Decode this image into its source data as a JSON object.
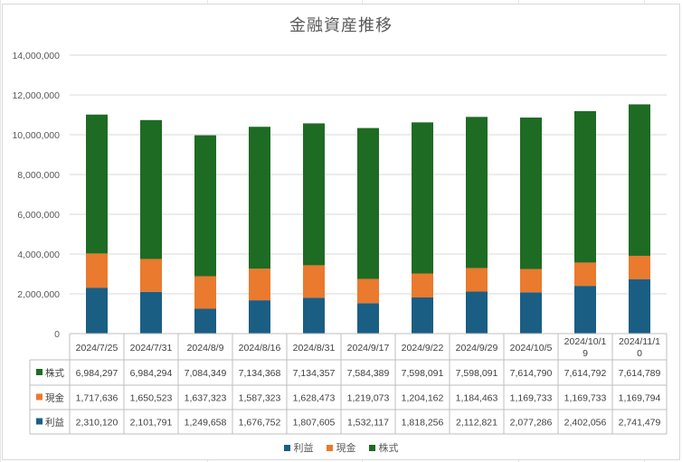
{
  "chart_data": {
    "type": "bar",
    "stacked": true,
    "title": "金融資産推移",
    "categories": [
      "2024/7/25",
      "2024/7/31",
      "2024/8/9",
      "2024/8/16",
      "2024/8/31",
      "2024/9/17",
      "2024/9/22",
      "2024/9/29",
      "2024/10/5",
      "2024/10/19",
      "2024/11/10"
    ],
    "category_labels": [
      [
        "2024/7/25"
      ],
      [
        "2024/7/31"
      ],
      [
        "2024/8/9"
      ],
      [
        "2024/8/16"
      ],
      [
        "2024/8/31"
      ],
      [
        "2024/9/17"
      ],
      [
        "2024/9/22"
      ],
      [
        "2024/9/29"
      ],
      [
        "2024/10/5"
      ],
      [
        "2024/10/1",
        "9"
      ],
      [
        "2024/11/1",
        "0"
      ]
    ],
    "ylim": [
      0,
      14000000
    ],
    "yticks": [
      "0",
      "2,000,000",
      "4,000,000",
      "6,000,000",
      "8,000,000",
      "10,000,000",
      "12,000,000",
      "14,000,000"
    ],
    "grid": true,
    "legend_position": "bottom",
    "series": [
      {
        "name": "利益",
        "color": "#1b5e84",
        "values": [
          2310120,
          2101791,
          1249658,
          1676752,
          1807605,
          1532117,
          1818256,
          2112821,
          2077286,
          2402056,
          2741479
        ],
        "labels": [
          "2,310,120",
          "2,101,791",
          "1,249,658",
          "1,676,752",
          "1,807,605",
          "1,532,117",
          "1,818,256",
          "2,112,821",
          "2,077,286",
          "2,402,056",
          "2,741,479"
        ]
      },
      {
        "name": "現金",
        "color": "#e97a2e",
        "values": [
          1717636,
          1650523,
          1637323,
          1587323,
          1628473,
          1219073,
          1204162,
          1184463,
          1169733,
          1169733,
          1169794
        ],
        "labels": [
          "1,717,636",
          "1,650,523",
          "1,637,323",
          "1,587,323",
          "1,628,473",
          "1,219,073",
          "1,204,162",
          "1,184,463",
          "1,169,733",
          "1,169,733",
          "1,169,794"
        ]
      },
      {
        "name": "株式",
        "color": "#1e6b23",
        "values": [
          6984297,
          6984294,
          7084349,
          7134368,
          7134357,
          7584389,
          7598091,
          7598091,
          7614790,
          7614792,
          7614789
        ],
        "labels": [
          "6,984,297",
          "6,984,294",
          "7,084,349",
          "7,134,368",
          "7,134,357",
          "7,584,389",
          "7,598,091",
          "7,598,091",
          "7,614,790",
          "7,614,792",
          "7,614,789"
        ]
      }
    ],
    "table_row_order": [
      "株式",
      "現金",
      "利益"
    ],
    "legend_order": [
      "利益",
      "現金",
      "株式"
    ]
  }
}
